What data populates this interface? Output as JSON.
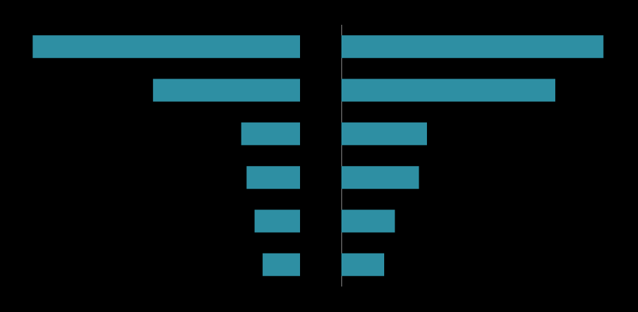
{
  "chart_data": [
    {
      "type": "bar",
      "orientation": "horizontal",
      "categories": [
        null,
        null,
        null,
        null,
        null,
        null
      ],
      "values": [
        -100,
        -55,
        -22,
        -20,
        -17,
        -14
      ],
      "color": "#2e8fa3",
      "xlim": [
        -105,
        0
      ],
      "grid": false,
      "tick_labels": false
    },
    {
      "type": "bar",
      "orientation": "horizontal",
      "categories": [
        null,
        null,
        null,
        null,
        null,
        null
      ],
      "values": [
        98,
        80,
        32,
        29,
        20,
        16
      ],
      "color": "#2e8fa3",
      "xlim": [
        0,
        105
      ],
      "grid": false,
      "tick_labels": false
    }
  ]
}
